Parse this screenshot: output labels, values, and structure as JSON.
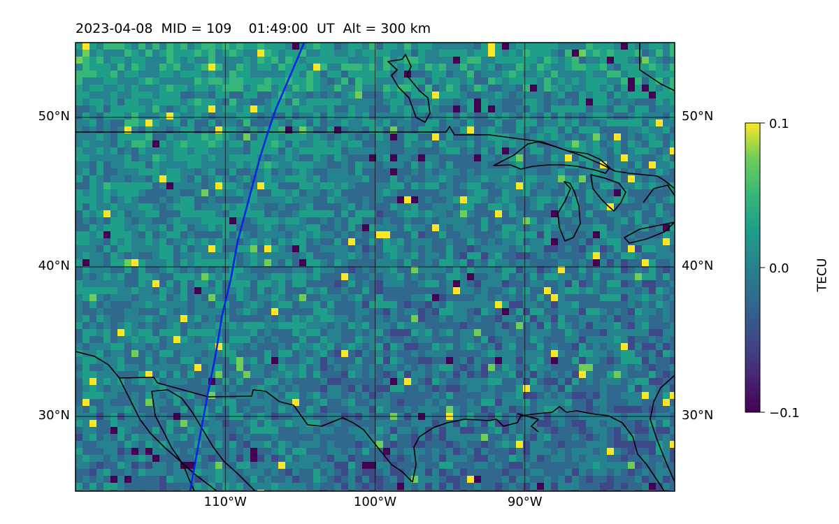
{
  "title": "2023-04-08  MID = 109    01:49:00  UT  Alt = 300 km",
  "map": {
    "lon_range": [
      -120,
      -80
    ],
    "lat_range": [
      25,
      55
    ],
    "lat_labels": [
      {
        "lat": 50,
        "text": "50°N"
      },
      {
        "lat": 40,
        "text": "40°N"
      },
      {
        "lat": 30,
        "text": "30°N"
      }
    ],
    "lon_labels": [
      {
        "lon": -110,
        "text": "110°W"
      },
      {
        "lon": -100,
        "text": "100°W"
      },
      {
        "lon": -90,
        "text": "90°W"
      }
    ],
    "gridlines": true,
    "track_color": "#0a24e6",
    "coast_color": "#000000"
  },
  "colorbar": {
    "label": "TECU",
    "ticks": [
      {
        "value": 0.1,
        "text": "0.1"
      },
      {
        "value": 0.0,
        "text": "0.0"
      },
      {
        "value": -0.1,
        "text": "−0.1"
      }
    ],
    "colormap": "viridis",
    "vmin": -0.1,
    "vmax": 0.1
  }
}
